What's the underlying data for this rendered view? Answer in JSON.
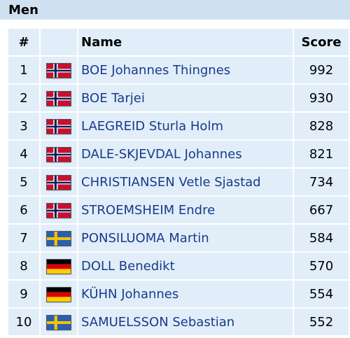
{
  "section": {
    "title": "Men"
  },
  "table": {
    "headers": {
      "rank": "#",
      "flag": "",
      "name": "Name",
      "score": "Score"
    },
    "rows": [
      {
        "rank": "1",
        "flag": "norway-flag-icon",
        "name": "BOE Johannes Thingnes",
        "score": "992"
      },
      {
        "rank": "2",
        "flag": "norway-flag-icon",
        "name": "BOE Tarjei",
        "score": "930"
      },
      {
        "rank": "3",
        "flag": "norway-flag-icon",
        "name": "LAEGREID Sturla Holm",
        "score": "828"
      },
      {
        "rank": "4",
        "flag": "norway-flag-icon",
        "name": "DALE-SKJEVDAL Johannes",
        "score": "821"
      },
      {
        "rank": "5",
        "flag": "norway-flag-icon",
        "name": "CHRISTIANSEN Vetle Sjastad",
        "score": "734"
      },
      {
        "rank": "6",
        "flag": "norway-flag-icon",
        "name": "STROEMSHEIM Endre",
        "score": "667"
      },
      {
        "rank": "7",
        "flag": "sweden-flag-icon",
        "name": "PONSILUOMA Martin",
        "score": "584"
      },
      {
        "rank": "8",
        "flag": "germany-flag-icon",
        "name": "DOLL Benedikt",
        "score": "570"
      },
      {
        "rank": "9",
        "flag": "germany-flag-icon",
        "name": "KÜHN Johannes",
        "score": "554"
      },
      {
        "rank": "10",
        "flag": "sweden-flag-icon",
        "name": "SAMUELSSON Sebastian",
        "score": "552"
      }
    ]
  },
  "colors": {
    "header_band": "#cfe0f1",
    "cell_background": "#e1eef9",
    "name_link": "#1a3a8a"
  }
}
